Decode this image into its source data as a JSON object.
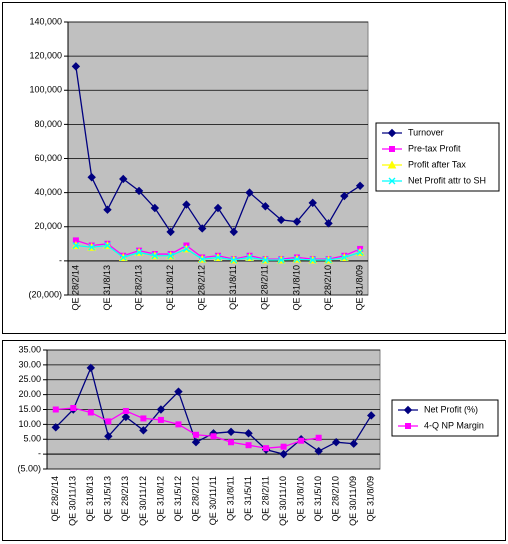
{
  "chart_data": [
    {
      "type": "line",
      "categories": [
        "QE 28/2/14",
        null,
        "QE 31/8/13",
        null,
        "QE 28/2/13",
        null,
        "QE 31/8/12",
        null,
        "QE 28/2/12",
        null,
        "QE 31/8/11",
        null,
        "QE 28/2/11",
        null,
        "QE 31/8/10",
        null,
        "QE 28/2/10",
        null,
        "QE 31/8/09"
      ],
      "series": [
        {
          "name": "Turnover",
          "color": "#000080",
          "marker": "diamond",
          "values": [
            114000,
            49000,
            30000,
            48000,
            41000,
            31000,
            17000,
            33000,
            19000,
            31000,
            17000,
            40000,
            32000,
            24000,
            23000,
            34000,
            22000,
            38000,
            44000
          ]
        },
        {
          "name": "Pre-tax Profit",
          "color": "#ff00ff",
          "marker": "square",
          "values": [
            12000,
            9000,
            10000,
            3000,
            6000,
            4000,
            4000,
            9000,
            2000,
            3000,
            1000,
            3000,
            1000,
            1000,
            2000,
            1000,
            1000,
            3000,
            7000
          ]
        },
        {
          "name": "Profit after Tax",
          "color": "#ffff00",
          "marker": "triangle",
          "values": [
            9000,
            8000,
            9000,
            2000,
            5000,
            3000,
            3000,
            7000,
            1000,
            2000,
            500,
            2000,
            500,
            500,
            1000,
            500,
            500,
            2000,
            5000
          ]
        },
        {
          "name": "Net Profit attr to SH",
          "color": "#00ffff",
          "marker": "x",
          "values": [
            9000,
            8000,
            9000,
            2000,
            5000,
            3000,
            3000,
            7000,
            1000,
            2000,
            500,
            2000,
            500,
            500,
            1000,
            500,
            500,
            2000,
            5000
          ]
        }
      ],
      "ylim": [
        -20000,
        140000
      ],
      "yticks": [
        {
          "value": -20000,
          "label": "(20,000)"
        },
        {
          "value": 0,
          "label": "-"
        },
        {
          "value": 20000,
          "label": "20,000"
        },
        {
          "value": 40000,
          "label": "40,000"
        },
        {
          "value": 60000,
          "label": "60,000"
        },
        {
          "value": 80000,
          "label": "80,000"
        },
        {
          "value": 100000,
          "label": "100,000"
        },
        {
          "value": 120000,
          "label": "120,000"
        },
        {
          "value": 140000,
          "label": "140,000"
        }
      ],
      "grid": true,
      "legend": "right"
    },
    {
      "type": "line",
      "categories": [
        "QE 28/2/14",
        "QE 30/11/13",
        "QE 31/8/13",
        "QE 31/5/13",
        "QE 28/2/13",
        "QE 30/11/12",
        "QE 31/8/12",
        "QE 31/5/12",
        "QE 28/2/12",
        "QE 30/11/11",
        "QE 31/8/11",
        "QE 31/5/11",
        "QE 28/2/11",
        "QE 30/11/10",
        "QE 31/8/10",
        "QE 31/5/10",
        "QE 28/2/10",
        "QE 30/11/09",
        "QE 31/8/09"
      ],
      "series": [
        {
          "name": "Net Profit (%)",
          "color": "#000080",
          "marker": "diamond",
          "values": [
            9,
            15,
            29,
            6,
            12.5,
            8,
            15,
            21,
            4,
            7,
            7.5,
            7,
            1.5,
            0,
            5,
            1,
            4,
            3.5,
            13
          ]
        },
        {
          "name": "4-Q NP Margin",
          "color": "#ff00ff",
          "marker": "square",
          "values": [
            15,
            15.5,
            14,
            11,
            14.5,
            12,
            11.5,
            10,
            6.5,
            6,
            4,
            3,
            2,
            2.5,
            4.5,
            5.5,
            null,
            null,
            null
          ]
        }
      ],
      "ylim": [
        -5,
        35
      ],
      "yticks": [
        {
          "value": -5,
          "label": "(5.00)"
        },
        {
          "value": 0,
          "label": "-"
        },
        {
          "value": 5,
          "label": "5.00"
        },
        {
          "value": 10,
          "label": "10.00"
        },
        {
          "value": 15,
          "label": "15.00"
        },
        {
          "value": 20,
          "label": "20.00"
        },
        {
          "value": 25,
          "label": "25.00"
        },
        {
          "value": 30,
          "label": "30.00"
        },
        {
          "value": 35,
          "label": "35.00"
        }
      ],
      "grid": true,
      "legend": "right"
    }
  ]
}
